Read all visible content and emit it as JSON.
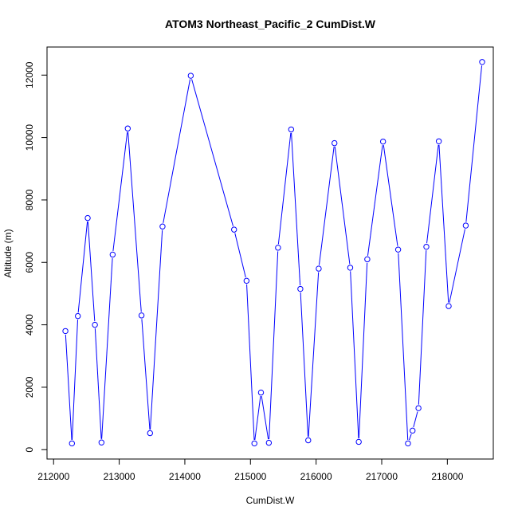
{
  "chart_data": {
    "type": "line",
    "title": "ATOM3 Northeast_Pacific_2 CumDist.W",
    "xlabel": "CumDist.W",
    "ylabel": "Altitude (m)",
    "xlim": [
      211900,
      218700
    ],
    "ylim": [
      -300,
      12900
    ],
    "x_ticks": [
      212000,
      213000,
      214000,
      215000,
      216000,
      217000,
      218000
    ],
    "y_ticks": [
      0,
      2000,
      4000,
      6000,
      8000,
      10000,
      12000
    ],
    "grid": false,
    "colors": {
      "series": "#0000ff",
      "frame": "#000000",
      "background": "#ffffff"
    },
    "series": [
      {
        "marker": "open-circle",
        "line": true,
        "points": [
          [
            212180,
            3800
          ],
          [
            212280,
            200
          ],
          [
            212370,
            4280
          ],
          [
            212520,
            7420
          ],
          [
            212630,
            4000
          ],
          [
            212730,
            230
          ],
          [
            212900,
            6250
          ],
          [
            213130,
            10290
          ],
          [
            213340,
            4300
          ],
          [
            213470,
            530
          ],
          [
            213660,
            7150
          ],
          [
            214090,
            11980
          ],
          [
            214750,
            7050
          ],
          [
            214940,
            5410
          ],
          [
            215060,
            200
          ],
          [
            215160,
            1830
          ],
          [
            215280,
            220
          ],
          [
            215420,
            6470
          ],
          [
            215620,
            10260
          ],
          [
            215760,
            5150
          ],
          [
            215880,
            300
          ],
          [
            216040,
            5800
          ],
          [
            216280,
            9820
          ],
          [
            216520,
            5830
          ],
          [
            216650,
            250
          ],
          [
            216780,
            6100
          ],
          [
            217020,
            9870
          ],
          [
            217250,
            6410
          ],
          [
            217400,
            200
          ],
          [
            217470,
            610
          ],
          [
            217560,
            1330
          ],
          [
            217680,
            6500
          ],
          [
            217870,
            9880
          ],
          [
            218020,
            4600
          ],
          [
            218280,
            7180
          ],
          [
            218530,
            12420
          ]
        ]
      }
    ]
  }
}
